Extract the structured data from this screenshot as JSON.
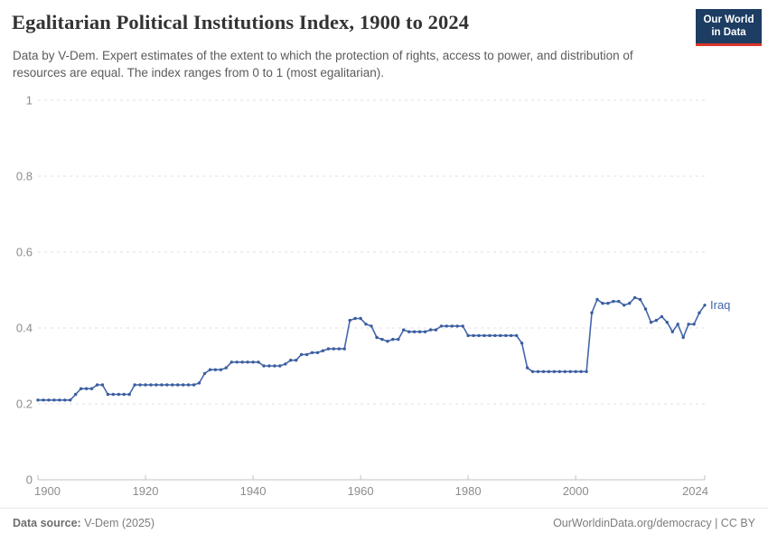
{
  "header": {
    "title": "Egalitarian Political Institutions Index, 1900 to 2024",
    "subtitle": "Data by V-Dem. Expert estimates of the extent to which the protection of rights, access to power, and distribution of resources are equal. The index ranges from 0 to 1 (most egalitarian).",
    "logo": {
      "line1": "Our World",
      "line2": "in Data",
      "bg_color": "#1d3d63",
      "stripe_color": "#dc352b"
    }
  },
  "footer": {
    "source_label": "Data source:",
    "source_value": " V-Dem (2025)",
    "credit": "OurWorldinData.org/democracy | CC BY"
  },
  "chart_data": {
    "type": "line",
    "title": "Egalitarian Political Institutions Index, 1900 to 2024",
    "xlabel": "",
    "ylabel": "",
    "x_start": 1900,
    "x_end": 2024,
    "x_ticks": [
      1900,
      1920,
      1940,
      1960,
      1980,
      2000,
      2024
    ],
    "y_ticks": [
      0,
      0.2,
      0.4,
      0.6,
      0.8,
      1
    ],
    "y_tick_labels": [
      "0",
      "0.2",
      "0.4",
      "0.6",
      "0.8",
      "1"
    ],
    "ylim": [
      0,
      1
    ],
    "grid": true,
    "grid_color": "#e0e0e0",
    "axis_color": "#c2c2c2",
    "tick_label_color": "#8c8c8c",
    "legend_position": "end-of-line-label",
    "series": [
      {
        "name": "Iraq",
        "color": "#4266ab",
        "marker_color": "#3a5d9e",
        "values": [
          0.21,
          0.21,
          0.21,
          0.21,
          0.21,
          0.21,
          0.21,
          0.225,
          0.24,
          0.24,
          0.24,
          0.25,
          0.25,
          0.225,
          0.225,
          0.225,
          0.225,
          0.225,
          0.25,
          0.25,
          0.25,
          0.25,
          0.25,
          0.25,
          0.25,
          0.25,
          0.25,
          0.25,
          0.25,
          0.25,
          0.255,
          0.28,
          0.29,
          0.29,
          0.29,
          0.295,
          0.31,
          0.31,
          0.31,
          0.31,
          0.31,
          0.31,
          0.3,
          0.3,
          0.3,
          0.3,
          0.305,
          0.315,
          0.315,
          0.33,
          0.33,
          0.335,
          0.335,
          0.34,
          0.345,
          0.345,
          0.345,
          0.345,
          0.42,
          0.425,
          0.425,
          0.41,
          0.405,
          0.375,
          0.37,
          0.365,
          0.37,
          0.37,
          0.395,
          0.39,
          0.39,
          0.39,
          0.39,
          0.395,
          0.395,
          0.405,
          0.405,
          0.405,
          0.405,
          0.405,
          0.38,
          0.38,
          0.38,
          0.38,
          0.38,
          0.38,
          0.38,
          0.38,
          0.38,
          0.38,
          0.36,
          0.295,
          0.285,
          0.285,
          0.285,
          0.285,
          0.285,
          0.285,
          0.285,
          0.285,
          0.285,
          0.285,
          0.285,
          0.44,
          0.475,
          0.465,
          0.465,
          0.47,
          0.47,
          0.46,
          0.465,
          0.48,
          0.475,
          0.45,
          0.415,
          0.42,
          0.43,
          0.415,
          0.39,
          0.41,
          0.375,
          0.41,
          0.41,
          0.44,
          0.46
        ]
      }
    ]
  }
}
